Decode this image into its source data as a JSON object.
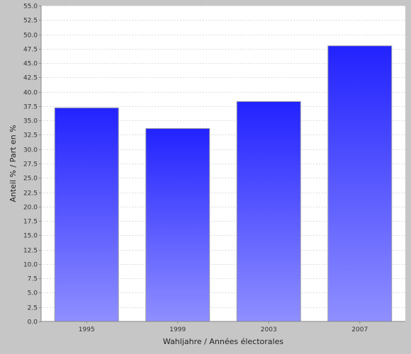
{
  "chart_data": {
    "type": "bar",
    "categories": [
      "1995",
      "1999",
      "2003",
      "2007"
    ],
    "values": [
      37.2,
      33.6,
      38.3,
      48.0
    ],
    "xlabel": "Wahljahre / Années électorales",
    "ylabel": "Anteil % / Part en %",
    "ylim": [
      0,
      55
    ],
    "ytick_step": 2.5,
    "grid": true,
    "legend": "none",
    "colors": {
      "background": "#c6c6c6",
      "plot_background": "#ffffff",
      "gridline": "#dddddd",
      "bar_top": "#2222ff",
      "bar_bottom": "#8f8fff",
      "bar_edge": "#9a9aa6"
    }
  }
}
